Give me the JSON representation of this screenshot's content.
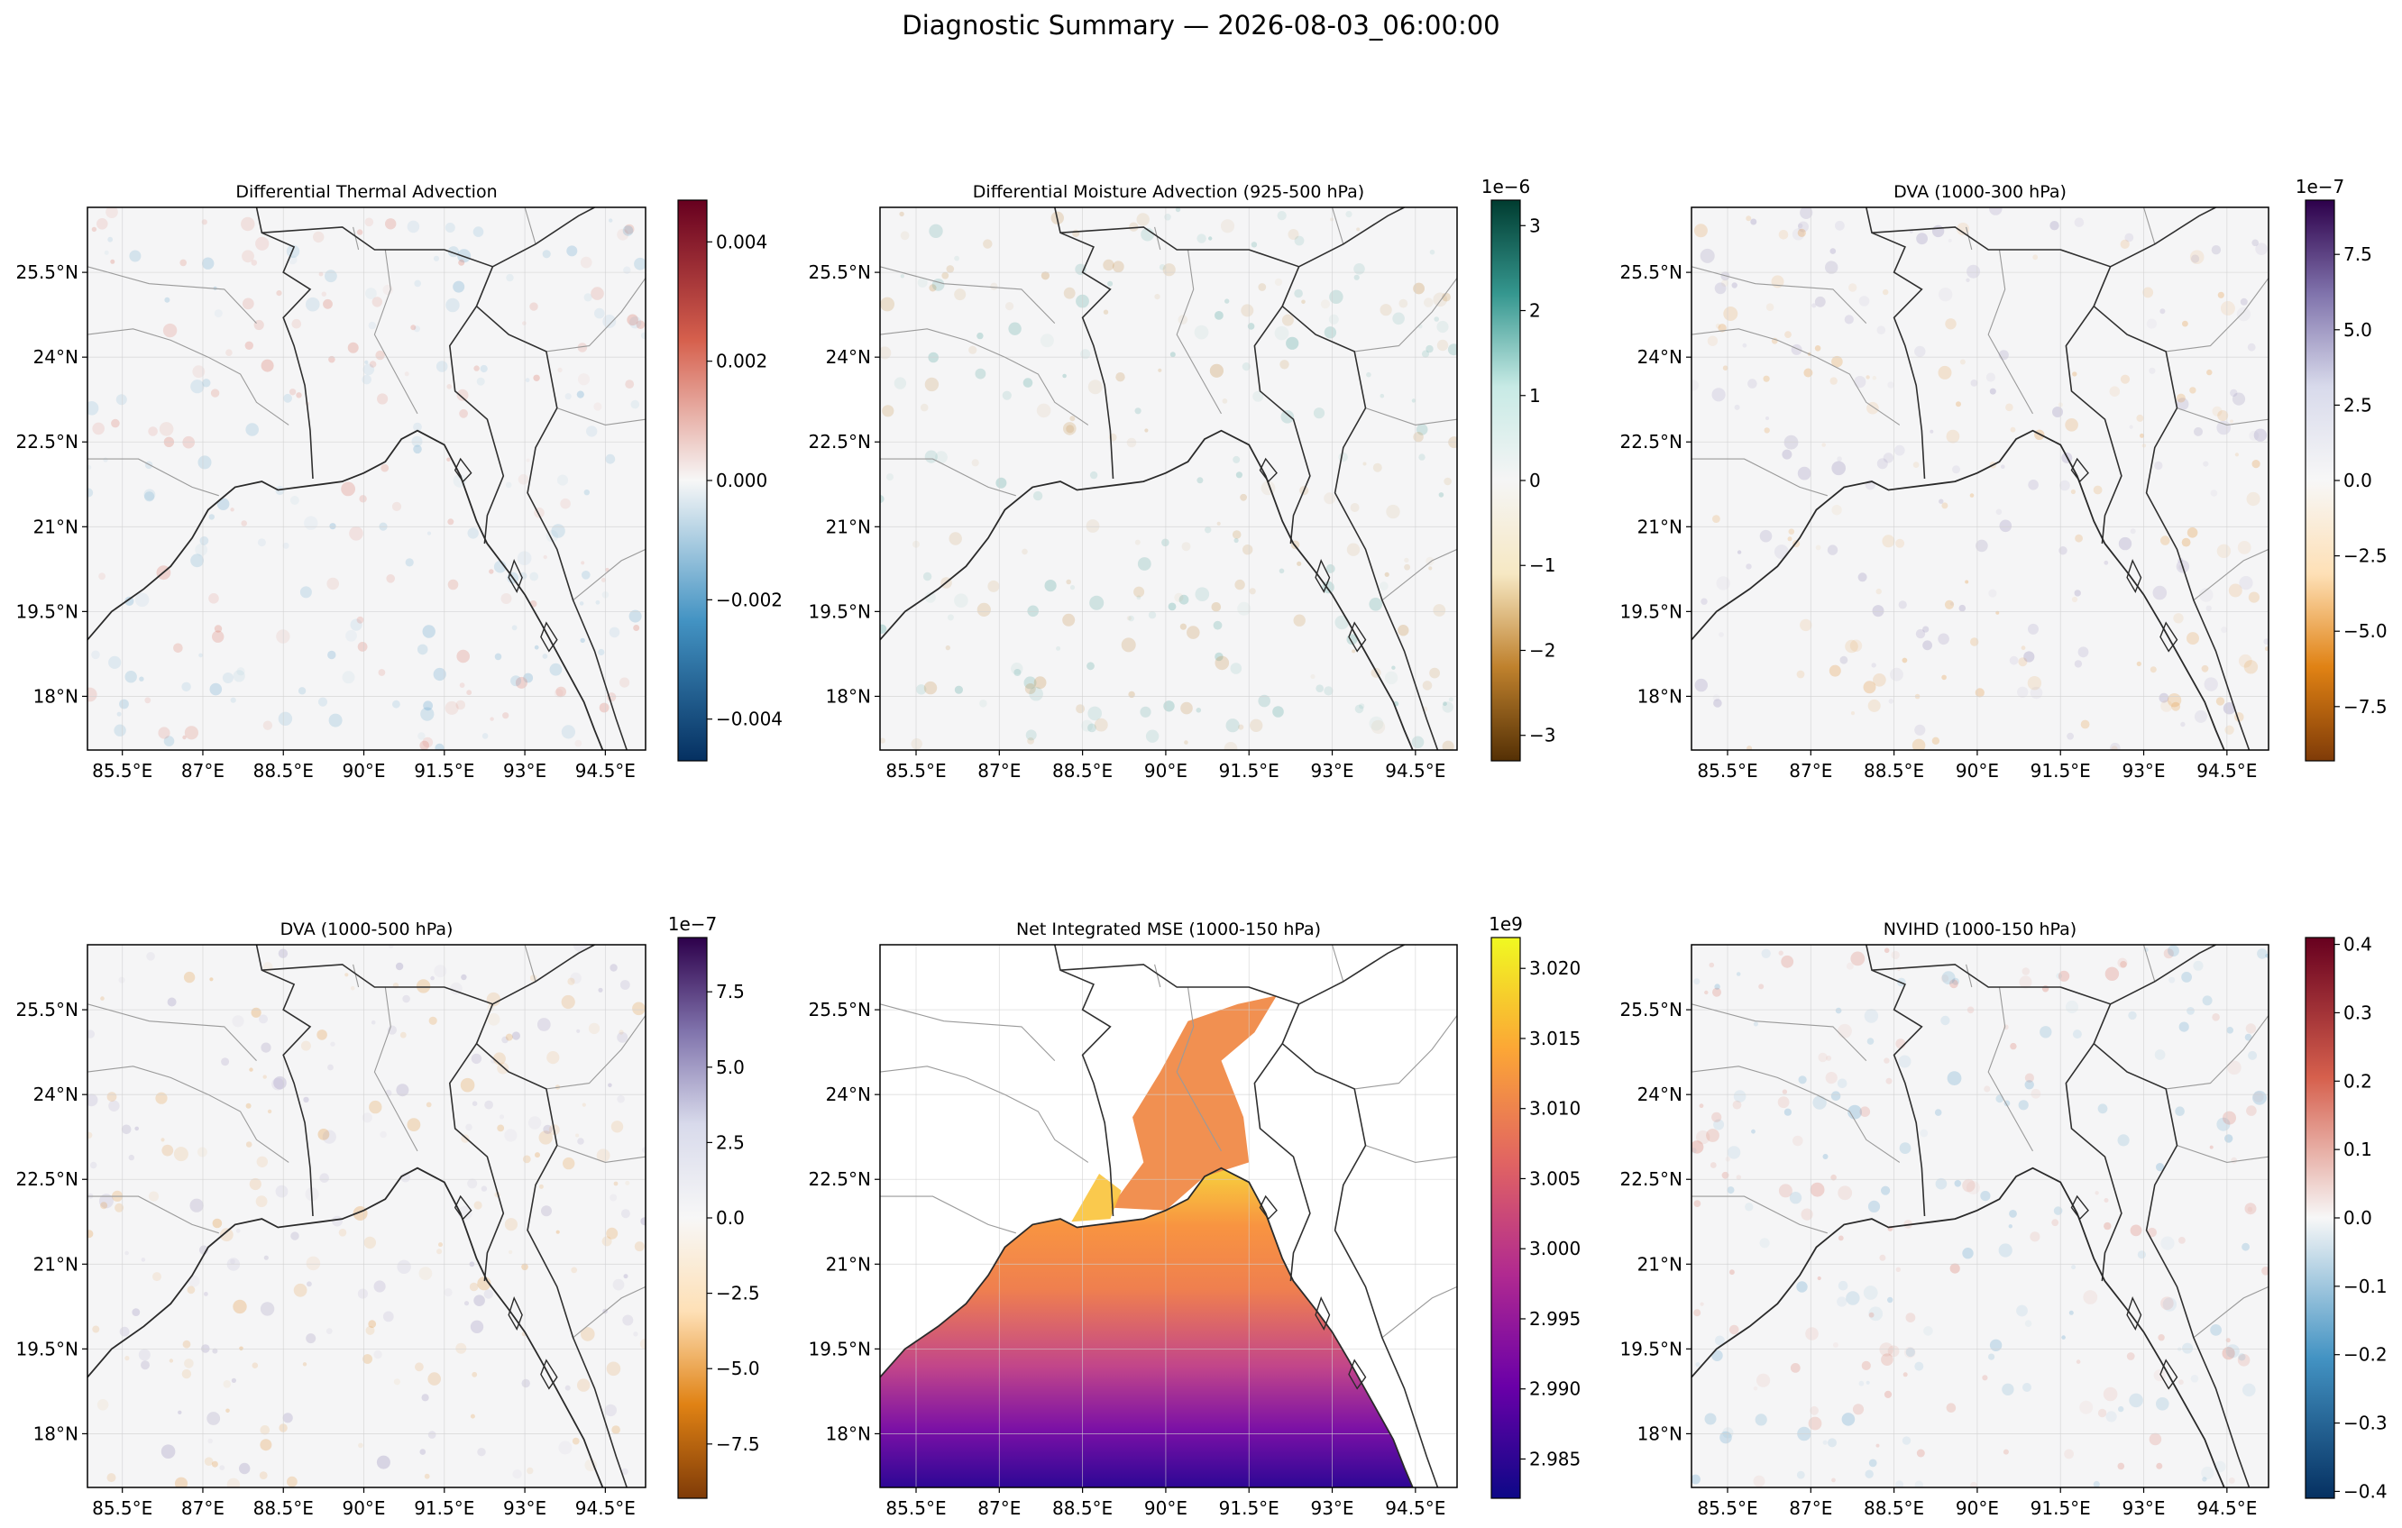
{
  "figure": {
    "title": "Diagnostic Summary — 2026-08-03_06:00:00"
  },
  "axes_ticks": {
    "lon_labels": [
      "85.5°E",
      "87°E",
      "88.5°E",
      "90°E",
      "91.5°E",
      "93°E",
      "94.5°E"
    ],
    "lat_labels": [
      "25.5°N",
      "24°N",
      "22.5°N",
      "21°N",
      "19.5°N",
      "18°N"
    ]
  },
  "panels": [
    {
      "id": "dta",
      "title": "Differential Thermal Advection",
      "field": "anomaly",
      "cmap": "RdBu_r",
      "colorbar": {
        "exponent": "",
        "vmin": -0.0047,
        "vmax": 0.0047,
        "ticks": [
          -0.004,
          -0.002,
          0.0,
          0.002,
          0.004
        ],
        "tick_labels": [
          "−0.004",
          "−0.002",
          "0.000",
          "0.002",
          "0.004"
        ],
        "stops": [
          "#053061",
          "#4393c3",
          "#f7f7f7",
          "#d6604d",
          "#67001f"
        ]
      }
    },
    {
      "id": "dma",
      "title": "Differential Moisture Advection (925-500 hPa)",
      "field": "anomaly",
      "cmap": "BrBG",
      "colorbar": {
        "exponent": "1e−6",
        "vmin": -3.3,
        "vmax": 3.3,
        "ticks": [
          -3,
          -2,
          -1,
          0,
          1,
          2,
          3
        ],
        "tick_labels": [
          "−3",
          "−2",
          "−1",
          "0",
          "1",
          "2",
          "3"
        ],
        "stops": [
          "#543005",
          "#bf812d",
          "#f6e8c3",
          "#f5f5f5",
          "#c7eae5",
          "#35978f",
          "#003c30"
        ]
      }
    },
    {
      "id": "dva300",
      "title": "DVA (1000-300 hPa)",
      "field": "anomaly",
      "cmap": "PuOr",
      "colorbar": {
        "exponent": "1e−7",
        "vmin": -9.3,
        "vmax": 9.3,
        "ticks": [
          -7.5,
          -5.0,
          -2.5,
          0.0,
          2.5,
          5.0,
          7.5
        ],
        "tick_labels": [
          "−7.5",
          "−5.0",
          "−2.5",
          "0.0",
          "2.5",
          "5.0",
          "7.5"
        ],
        "stops": [
          "#7f3b08",
          "#e08214",
          "#fee0b6",
          "#f7f7f7",
          "#d8daeb",
          "#8073ac",
          "#2d004b"
        ]
      }
    },
    {
      "id": "dva500",
      "title": "DVA (1000-500 hPa)",
      "field": "anomaly",
      "cmap": "PuOr",
      "colorbar": {
        "exponent": "1e−7",
        "vmin": -9.3,
        "vmax": 9.3,
        "ticks": [
          -7.5,
          -5.0,
          -2.5,
          0.0,
          2.5,
          5.0,
          7.5
        ],
        "tick_labels": [
          "−7.5",
          "−5.0",
          "−2.5",
          "0.0",
          "2.5",
          "5.0",
          "7.5"
        ],
        "stops": [
          "#7f3b08",
          "#e08214",
          "#fee0b6",
          "#f7f7f7",
          "#d8daeb",
          "#8073ac",
          "#2d004b"
        ]
      }
    },
    {
      "id": "mse",
      "title": "Net Integrated MSE (1000-150 hPa)",
      "field": "mse",
      "cmap": "plasma",
      "colorbar": {
        "exponent": "1e9",
        "vmin": 2.9822,
        "vmax": 3.0222,
        "ticks": [
          2.985,
          2.99,
          2.995,
          3.0,
          3.005,
          3.01,
          3.015,
          3.02
        ],
        "tick_labels": [
          "2.985",
          "2.990",
          "2.995",
          "3.000",
          "3.005",
          "3.010",
          "3.015",
          "3.020"
        ],
        "stops": [
          "#0d0887",
          "#6a00a8",
          "#b12a90",
          "#e16462",
          "#fca636",
          "#f0f921"
        ]
      }
    },
    {
      "id": "nvihd",
      "title": "NVIHD (1000-150 hPa)",
      "field": "anomaly",
      "cmap": "RdBu_r",
      "colorbar": {
        "exponent": "",
        "vmin": -0.41,
        "vmax": 0.41,
        "ticks": [
          -0.4,
          -0.3,
          -0.2,
          -0.1,
          0.0,
          0.1,
          0.2,
          0.3,
          0.4
        ],
        "tick_labels": [
          "−0.4",
          "−0.3",
          "−0.2",
          "−0.1",
          "0.0",
          "0.1",
          "0.2",
          "0.3",
          "0.4"
        ],
        "stops": [
          "#053061",
          "#4393c3",
          "#f7f7f7",
          "#d6604d",
          "#67001f"
        ]
      }
    }
  ]
}
